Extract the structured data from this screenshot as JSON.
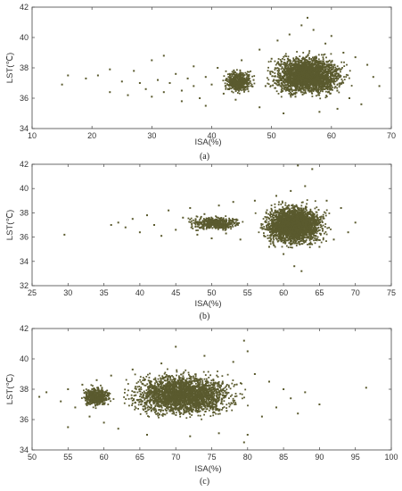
{
  "figure": {
    "point_color": "#5a5a2e"
  },
  "chart_data": [
    {
      "type": "scatter",
      "caption": "(a)",
      "xlabel": "ISA(%)",
      "ylabel": "LST(℃)",
      "xlim": [
        10,
        70
      ],
      "ylim": [
        34,
        42
      ],
      "xticks": [
        10,
        20,
        30,
        40,
        50,
        60,
        70
      ],
      "yticks": [
        34,
        36,
        38,
        40,
        42
      ],
      "grid": false,
      "points": [
        [
          15,
          36.9
        ],
        [
          16,
          37.5
        ],
        [
          19,
          37.3
        ],
        [
          21,
          37.5
        ],
        [
          23,
          36.4
        ],
        [
          23,
          37.9
        ],
        [
          25,
          37.1
        ],
        [
          26,
          36.2
        ],
        [
          27,
          37.8
        ],
        [
          28,
          37.0
        ],
        [
          29,
          36.6
        ],
        [
          30,
          38.5
        ],
        [
          30,
          36.1
        ],
        [
          31,
          37.2
        ],
        [
          32,
          36.4
        ],
        [
          32,
          38.8
        ],
        [
          33,
          37.0
        ],
        [
          34,
          37.6
        ],
        [
          35,
          35.8
        ],
        [
          35,
          36.5
        ],
        [
          36,
          37.3
        ],
        [
          37,
          36.8
        ],
        [
          37,
          38.1
        ],
        [
          38,
          36.0
        ],
        [
          39,
          37.4
        ],
        [
          39,
          35.5
        ],
        [
          40,
          36.9
        ],
        [
          41,
          38.0
        ],
        [
          42,
          36.3
        ],
        [
          43,
          37.6
        ],
        [
          44,
          35.9
        ],
        [
          45,
          38.5
        ],
        [
          46,
          36.6
        ],
        [
          47,
          37.2
        ],
        [
          48,
          39.2
        ],
        [
          48,
          35.4
        ],
        [
          49,
          36.8
        ],
        [
          50,
          38.6
        ],
        [
          51,
          39.8
        ],
        [
          52,
          35.0
        ],
        [
          53,
          40.2
        ],
        [
          54,
          36.1
        ],
        [
          55,
          40.8
        ],
        [
          56,
          41.3
        ],
        [
          57,
          40.5
        ],
        [
          58,
          35.1
        ],
        [
          59,
          39.6
        ],
        [
          60,
          40.1
        ],
        [
          61,
          35.3
        ],
        [
          62,
          39.0
        ],
        [
          63,
          36.0
        ],
        [
          64,
          38.7
        ],
        [
          65,
          35.6
        ],
        [
          66,
          38.2
        ],
        [
          67,
          37.4
        ],
        [
          68,
          36.8
        ]
      ],
      "dense_regions": [
        {
          "x": [
            47,
            65
          ],
          "y": [
            35.5,
            39.5
          ]
        },
        {
          "x": [
            41,
            48
          ],
          "y": [
            36.0,
            38.2
          ]
        }
      ]
    },
    {
      "type": "scatter",
      "caption": "(b)",
      "xlabel": "ISA(%)",
      "ylabel": "LST(℃)",
      "xlim": [
        25,
        75
      ],
      "ylim": [
        32,
        42
      ],
      "xticks": [
        25,
        30,
        35,
        40,
        45,
        50,
        55,
        60,
        65,
        70,
        75
      ],
      "yticks": [
        32,
        34,
        36,
        38,
        40,
        42
      ],
      "grid": false,
      "points": [
        [
          29.5,
          36.2
        ],
        [
          36,
          37.0
        ],
        [
          37,
          37.2
        ],
        [
          38,
          36.8
        ],
        [
          39,
          37.5
        ],
        [
          40,
          36.4
        ],
        [
          41,
          37.8
        ],
        [
          42,
          37.0
        ],
        [
          43,
          36.1
        ],
        [
          44,
          38.2
        ],
        [
          45,
          36.6
        ],
        [
          46,
          37.6
        ],
        [
          47,
          38.4
        ],
        [
          48,
          36.2
        ],
        [
          49,
          37.9
        ],
        [
          50,
          35.9
        ],
        [
          51,
          38.6
        ],
        [
          52,
          36.3
        ],
        [
          53,
          38.9
        ],
        [
          54,
          35.8
        ],
        [
          56,
          39.0
        ],
        [
          58,
          35.2
        ],
        [
          59,
          39.4
        ],
        [
          60,
          34.6
        ],
        [
          61,
          39.8
        ],
        [
          61.5,
          33.6
        ],
        [
          62,
          41.9
        ],
        [
          62.5,
          33.2
        ],
        [
          63,
          40.2
        ],
        [
          64,
          41.6
        ],
        [
          65,
          35.2
        ],
        [
          66,
          39.0
        ],
        [
          67,
          35.8
        ],
        [
          68,
          38.4
        ],
        [
          69,
          36.4
        ],
        [
          70,
          37.2
        ]
      ],
      "dense_regions": [
        {
          "x": [
            55,
            68
          ],
          "y": [
            34.5,
            39.5
          ]
        },
        {
          "x": [
            45,
            56
          ],
          "y": [
            36.3,
            38.0
          ]
        }
      ]
    },
    {
      "type": "scatter",
      "caption": "(c)",
      "xlabel": "ISA(%)",
      "ylabel": "LST(℃)",
      "xlim": [
        50,
        100
      ],
      "ylim": [
        34,
        42
      ],
      "xticks": [
        50,
        55,
        60,
        65,
        70,
        75,
        80,
        85,
        90,
        95,
        100
      ],
      "yticks": [
        34,
        36,
        38,
        40,
        42
      ],
      "grid": false,
      "points": [
        [
          51,
          37.5
        ],
        [
          52,
          37.8
        ],
        [
          54,
          37.2
        ],
        [
          55,
          35.5
        ],
        [
          55,
          38.0
        ],
        [
          56,
          36.8
        ],
        [
          57,
          38.3
        ],
        [
          58,
          36.2
        ],
        [
          59,
          38.6
        ],
        [
          60,
          35.8
        ],
        [
          61,
          38.9
        ],
        [
          62,
          35.4
        ],
        [
          64,
          39.3
        ],
        [
          66,
          35.0
        ],
        [
          68,
          39.7
        ],
        [
          70,
          40.8
        ],
        [
          72,
          34.9
        ],
        [
          74,
          40.2
        ],
        [
          76,
          35.1
        ],
        [
          78,
          39.8
        ],
        [
          79.5,
          41.2
        ],
        [
          79.5,
          34.5
        ],
        [
          80,
          40.5
        ],
        [
          80,
          35.0
        ],
        [
          81,
          39.0
        ],
        [
          82,
          36.2
        ],
        [
          83,
          38.5
        ],
        [
          84,
          36.8
        ],
        [
          85,
          38.0
        ],
        [
          86,
          37.4
        ],
        [
          87,
          36.4
        ],
        [
          88,
          37.8
        ],
        [
          90,
          37.0
        ],
        [
          96.5,
          38.1
        ]
      ],
      "dense_regions": [
        {
          "x": [
            60,
            82
          ],
          "y": [
            35.5,
            39.8
          ]
        },
        {
          "x": [
            56,
            62
          ],
          "y": [
            36.5,
            38.5
          ]
        }
      ]
    }
  ]
}
